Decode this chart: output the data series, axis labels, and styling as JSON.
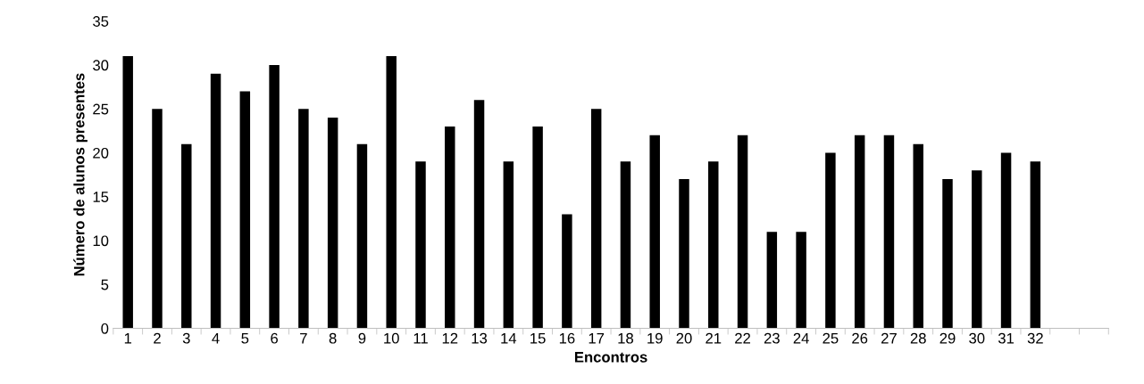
{
  "chart_data": {
    "type": "bar",
    "xlabel": "Encontros",
    "ylabel": "Número de alunos presentes",
    "categories": [
      "1",
      "2",
      "3",
      "4",
      "5",
      "6",
      "7",
      "8",
      "9",
      "10",
      "11",
      "12",
      "13",
      "14",
      "15",
      "16",
      "17",
      "18",
      "19",
      "20",
      "21",
      "22",
      "23",
      "24",
      "25",
      "26",
      "27",
      "28",
      "29",
      "30",
      "31",
      "32",
      null,
      null
    ],
    "values": [
      31,
      25,
      21,
      29,
      27,
      30,
      25,
      24,
      21,
      31,
      19,
      23,
      26,
      19,
      23,
      13,
      25,
      19,
      22,
      17,
      19,
      22,
      11,
      11,
      20,
      22,
      22,
      21,
      17,
      18,
      20,
      19,
      null,
      null
    ],
    "color": "#000000",
    "ylim": [
      0,
      35
    ],
    "yticks": [
      0,
      5,
      10,
      15,
      20,
      25,
      30,
      35
    ],
    "grid": false
  }
}
